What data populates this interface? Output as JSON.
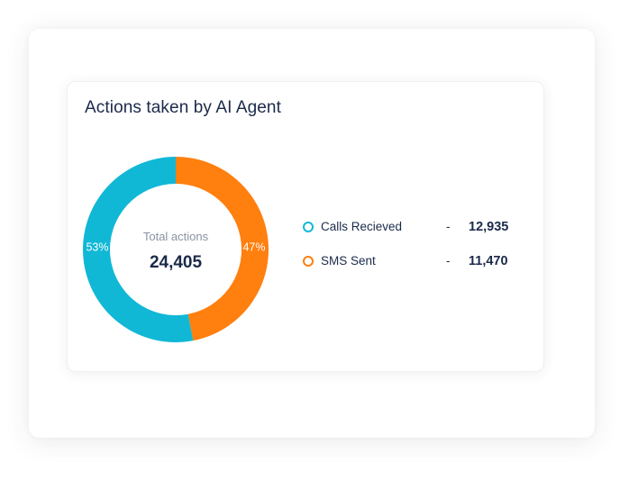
{
  "card": {
    "title": "Actions taken by AI Agent"
  },
  "donut": {
    "center_caption": "Total actions",
    "center_total": "24,405"
  },
  "legend": {
    "items": [
      {
        "label": "Calls Recieved",
        "dash": "-",
        "value": "12,935",
        "color": "#10b8d6"
      },
      {
        "label": "SMS Sent",
        "dash": "-",
        "value": "11,470",
        "color": "#ff7f0f"
      }
    ]
  },
  "chart_data": {
    "type": "pie",
    "variant": "donut",
    "title": "Actions taken by AI Agent",
    "categories": [
      "Calls Recieved",
      "SMS Sent"
    ],
    "values": [
      12935,
      11470
    ],
    "percent_labels": [
      "53%",
      "47%"
    ],
    "colors": [
      "#10b8d6",
      "#ff7f0f"
    ],
    "total": 24405,
    "legend_placement": "right"
  }
}
